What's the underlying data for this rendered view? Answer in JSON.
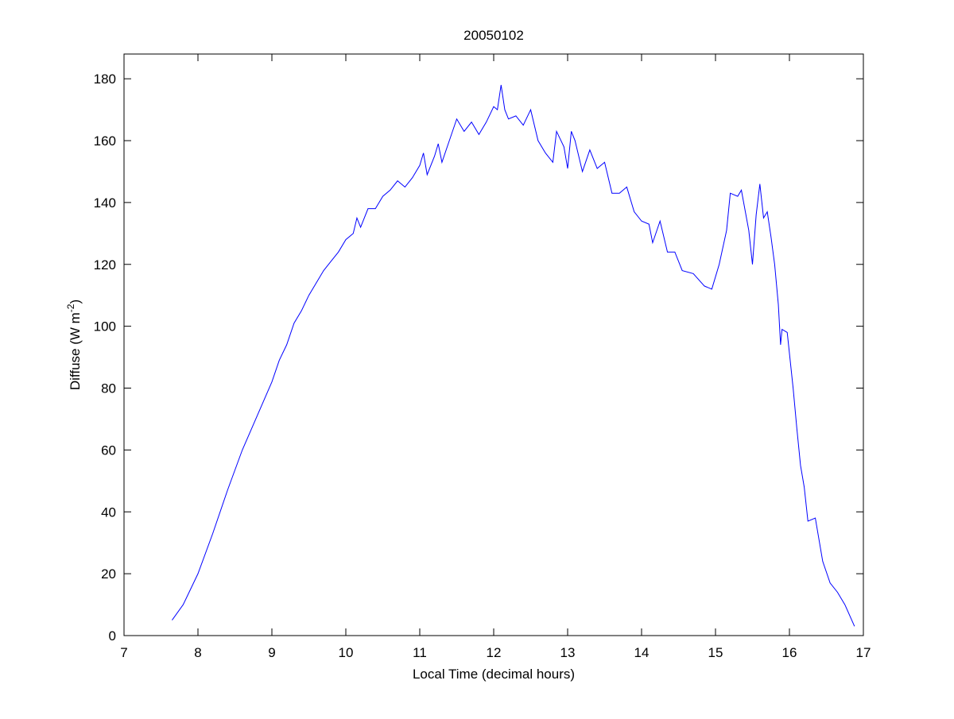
{
  "chart_data": {
    "type": "line",
    "title": "20050102",
    "xlabel": "Local Time (decimal hours)",
    "ylabel": {
      "text": "Diffuse (W m",
      "sup": "-2",
      "close": ")"
    },
    "xlim": [
      7,
      17
    ],
    "ylim": [
      0,
      188
    ],
    "xticks": [
      7,
      8,
      9,
      10,
      11,
      12,
      13,
      14,
      15,
      16,
      17
    ],
    "yticks": [
      0,
      20,
      40,
      60,
      80,
      100,
      120,
      140,
      160,
      180
    ],
    "series": [
      {
        "color": "#0000ff",
        "x": [
          7.65,
          7.8,
          8.0,
          8.2,
          8.4,
          8.6,
          8.8,
          9.0,
          9.1,
          9.2,
          9.3,
          9.4,
          9.5,
          9.6,
          9.7,
          9.8,
          9.9,
          10.0,
          10.1,
          10.15,
          10.2,
          10.3,
          10.4,
          10.5,
          10.6,
          10.7,
          10.8,
          10.9,
          11.0,
          11.05,
          11.1,
          11.2,
          11.25,
          11.3,
          11.4,
          11.5,
          11.6,
          11.7,
          11.8,
          11.9,
          12.0,
          12.05,
          12.1,
          12.15,
          12.2,
          12.3,
          12.4,
          12.5,
          12.6,
          12.7,
          12.8,
          12.85,
          12.95,
          13.0,
          13.05,
          13.1,
          13.2,
          13.3,
          13.4,
          13.5,
          13.6,
          13.7,
          13.8,
          13.9,
          14.0,
          14.1,
          14.15,
          14.25,
          14.35,
          14.45,
          14.55,
          14.7,
          14.85,
          14.95,
          15.05,
          15.15,
          15.2,
          15.3,
          15.35,
          15.45,
          15.5,
          15.55,
          15.6,
          15.65,
          15.7,
          15.75,
          15.8,
          15.85,
          15.88,
          15.9,
          15.97,
          16.05,
          16.1,
          16.15,
          16.2,
          16.25,
          16.35,
          16.45,
          16.55,
          16.65,
          16.75,
          16.88
        ],
        "values": [
          5,
          10,
          20,
          33,
          47,
          60,
          71,
          82,
          89,
          94,
          101,
          105,
          110,
          114,
          118,
          121,
          124,
          128,
          130,
          135,
          132,
          138,
          138,
          142,
          144,
          147,
          145,
          148,
          152,
          156,
          149,
          155,
          159,
          153,
          160,
          167,
          163,
          166,
          162,
          166,
          171,
          170,
          178,
          170,
          167,
          168,
          165,
          170,
          160,
          156,
          153,
          163,
          158,
          151,
          163,
          160,
          150,
          157,
          151,
          153,
          143,
          143,
          145,
          137,
          134,
          133,
          127,
          134,
          124,
          124,
          118,
          117,
          113,
          112,
          120,
          131,
          143,
          142,
          144,
          131,
          120,
          136,
          146,
          135,
          137,
          129,
          120,
          107,
          94,
          99,
          98,
          80,
          67,
          55,
          48,
          37,
          38,
          24,
          17,
          14,
          10,
          3
        ]
      }
    ]
  }
}
